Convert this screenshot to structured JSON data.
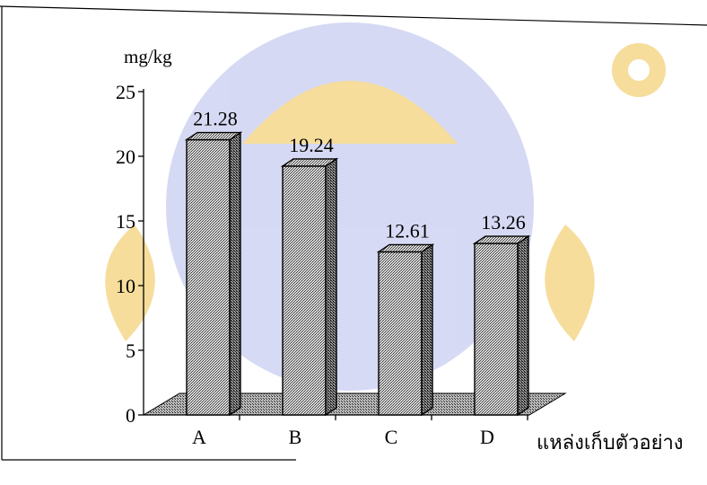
{
  "chart_data": {
    "type": "bar",
    "categories": [
      "A",
      "B",
      "C",
      "D"
    ],
    "values": [
      21.28,
      19.24,
      12.61,
      13.26
    ],
    "data_labels": [
      "21.28",
      "19.24",
      "12.61",
      "13.26"
    ],
    "ylabel": "mg/kg",
    "xlabel": "แหล่งเก็บตัวอย่าง",
    "ylim": [
      0,
      25
    ],
    "yticks": [
      0,
      5,
      10,
      15,
      20,
      25
    ],
    "grid": false,
    "bar_style": "3d-stippled"
  },
  "watermark": {
    "colors": {
      "purple": "#c9cdf0",
      "gold": "#f3d27a"
    }
  }
}
